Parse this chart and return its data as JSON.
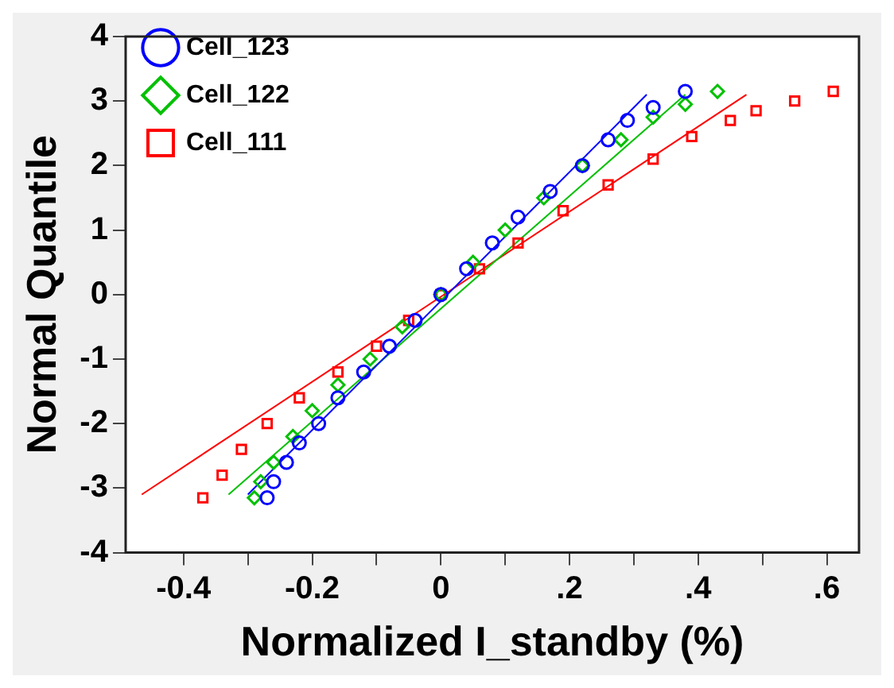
{
  "chart_data": {
    "type": "scatter",
    "xlabel": "Normalized I_standby (%)",
    "ylabel": "Normal Quantile",
    "xlim": [
      -0.49,
      0.65
    ],
    "ylim": [
      -4,
      4
    ],
    "xticks": [
      {
        "value": -0.4,
        "label": "-0.4"
      },
      {
        "value": -0.3,
        "label": null
      },
      {
        "value": -0.2,
        "label": "-0.2"
      },
      {
        "value": -0.1,
        "label": null
      },
      {
        "value": 0,
        "label": "0"
      },
      {
        "value": 0.1,
        "label": null
      },
      {
        "value": 0.2,
        "label": ".2"
      },
      {
        "value": 0.3,
        "label": null
      },
      {
        "value": 0.4,
        "label": ".4"
      },
      {
        "value": 0.5,
        "label": null
      },
      {
        "value": 0.6,
        "label": ".6"
      }
    ],
    "yticks": [
      -4,
      -3,
      -2,
      -1,
      0,
      1,
      2,
      3,
      4
    ],
    "grid": false,
    "legend": "top left",
    "series": [
      {
        "name": "Cell_123",
        "color": "#0000ff",
        "marker": "circle",
        "x": [
          -0.27,
          -0.26,
          -0.24,
          -0.22,
          -0.19,
          -0.16,
          -0.12,
          -0.08,
          -0.04,
          0,
          0.04,
          0.08,
          0.12,
          0.17,
          0.22,
          0.26,
          0.29,
          0.33,
          0.38
        ],
        "values": [
          -3.15,
          -2.9,
          -2.6,
          -2.3,
          -2.0,
          -1.6,
          -1.2,
          -0.8,
          -0.4,
          0,
          0.4,
          0.8,
          1.2,
          1.6,
          2.0,
          2.4,
          2.7,
          2.9,
          3.15
        ]
      },
      {
        "name": "Cell_122",
        "color": "#00c000",
        "marker": "diamond",
        "x": [
          -0.29,
          -0.28,
          -0.26,
          -0.23,
          -0.2,
          -0.16,
          -0.11,
          -0.06,
          0,
          0.05,
          0.1,
          0.16,
          0.22,
          0.28,
          0.33,
          0.38,
          0.43
        ],
        "values": [
          -3.15,
          -2.9,
          -2.6,
          -2.2,
          -1.8,
          -1.4,
          -1.0,
          -0.5,
          0,
          0.5,
          1.0,
          1.5,
          2.0,
          2.4,
          2.75,
          2.95,
          3.15
        ]
      },
      {
        "name": "Cell_111",
        "color": "#ff0000",
        "marker": "square",
        "x": [
          -0.37,
          -0.34,
          -0.31,
          -0.27,
          -0.22,
          -0.16,
          -0.1,
          -0.05,
          0,
          0.06,
          0.12,
          0.19,
          0.26,
          0.33,
          0.39,
          0.45,
          0.49,
          0.55,
          0.61
        ],
        "values": [
          -3.15,
          -2.8,
          -2.4,
          -2.0,
          -1.6,
          -1.2,
          -0.8,
          -0.4,
          0,
          0.4,
          0.8,
          1.3,
          1.7,
          2.1,
          2.45,
          2.7,
          2.85,
          3.0,
          3.15
        ]
      },
      {
        "type": "line",
        "color": "#0000ff",
        "marker": "none",
        "x": [
          -0.3,
          0.32
        ],
        "values": [
          -3.1,
          3.1
        ]
      },
      {
        "type": "line",
        "color": "#00c000",
        "marker": "none",
        "x": [
          -0.33,
          0.38
        ],
        "values": [
          -3.1,
          3.1
        ]
      },
      {
        "type": "line",
        "color": "#ff0000",
        "marker": "none",
        "x": [
          -0.465,
          0.475
        ],
        "values": [
          -3.1,
          3.1
        ]
      }
    ]
  }
}
